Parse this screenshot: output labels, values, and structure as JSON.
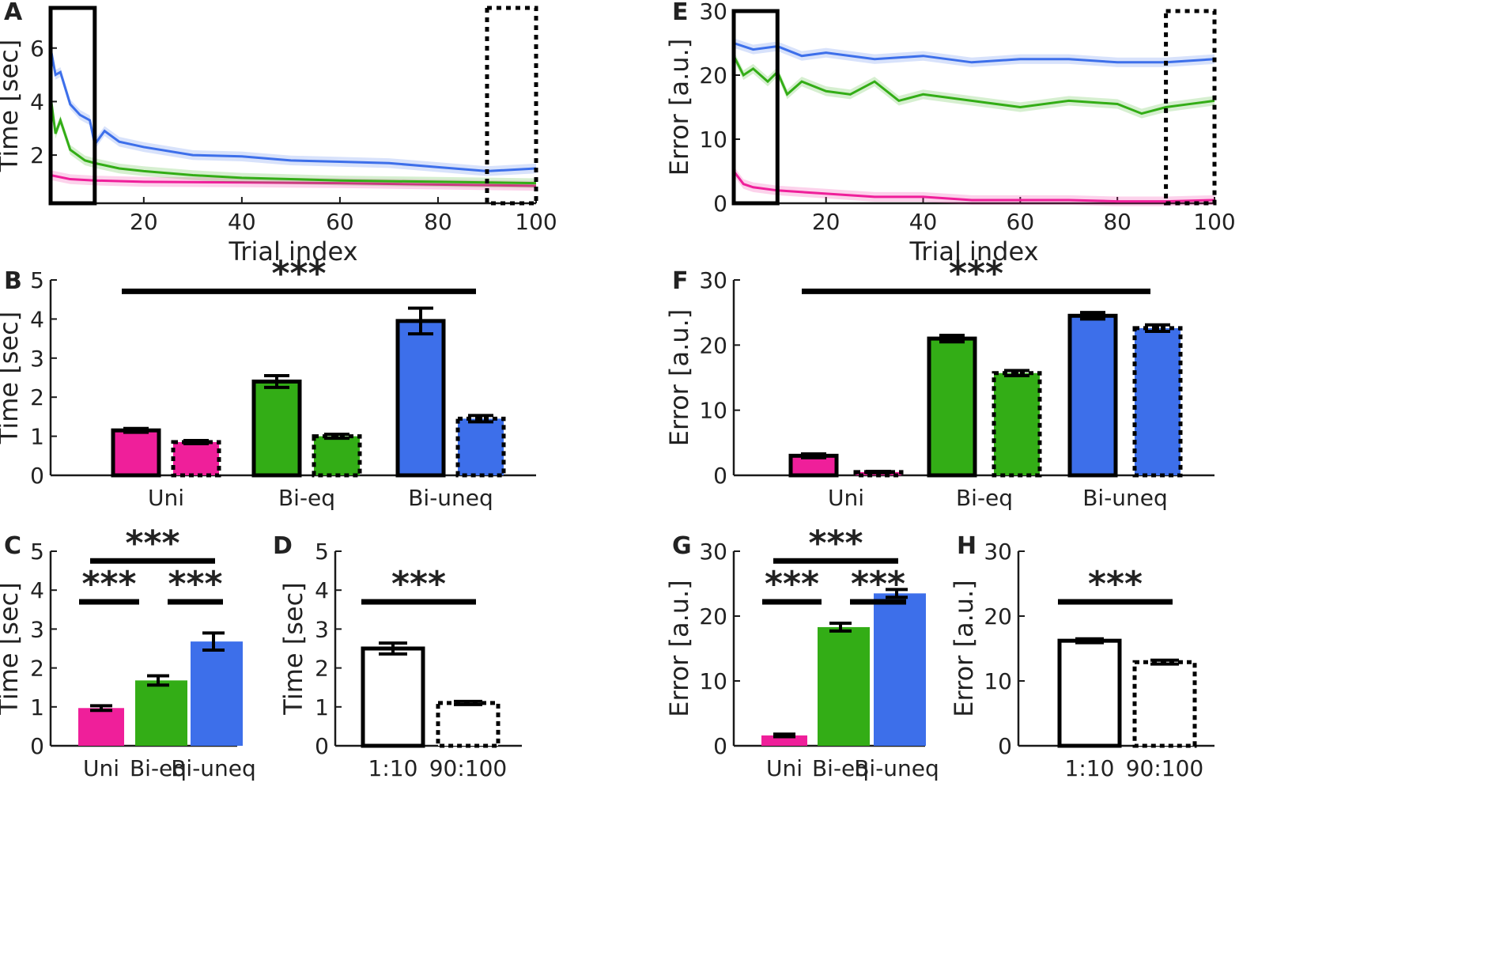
{
  "colors": {
    "uni": "#ef1f9a",
    "bieq": "#33ad16",
    "biuneq": "#3d6fea",
    "axis": "#1a1a1a",
    "bar_outline": "#000000"
  },
  "chart_data": [
    {
      "panel": "A",
      "type": "line",
      "xlabel": "Trial index",
      "ylabel": "Time [sec]",
      "xlim": [
        1,
        100
      ],
      "ylim": [
        0.2,
        7.5
      ],
      "xticks": [
        "20",
        "40",
        "60",
        "80",
        "100"
      ],
      "yticks": [
        "2",
        "4",
        "6"
      ],
      "boxes": [
        {
          "range": "1:10",
          "style": "solid"
        },
        {
          "range": "90:100",
          "style": "dotted"
        }
      ],
      "series": [
        {
          "name": "Uni",
          "color_key": "uni",
          "points": [
            [
              1,
              1.25
            ],
            [
              5,
              1.1
            ],
            [
              10,
              1.05
            ],
            [
              20,
              1.0
            ],
            [
              40,
              0.98
            ],
            [
              60,
              0.95
            ],
            [
              80,
              0.9
            ],
            [
              100,
              0.85
            ]
          ]
        },
        {
          "name": "Bi-eq",
          "color_key": "bieq",
          "points": [
            [
              1,
              4.2
            ],
            [
              2,
              2.8
            ],
            [
              3,
              3.3
            ],
            [
              5,
              2.2
            ],
            [
              8,
              1.8
            ],
            [
              10,
              1.7
            ],
            [
              15,
              1.5
            ],
            [
              20,
              1.4
            ],
            [
              30,
              1.25
            ],
            [
              40,
              1.15
            ],
            [
              60,
              1.05
            ],
            [
              80,
              1.0
            ],
            [
              100,
              0.95
            ]
          ]
        },
        {
          "name": "Bi-uneq",
          "color_key": "biuneq",
          "points": [
            [
              1,
              6.0
            ],
            [
              2,
              5.0
            ],
            [
              3,
              5.1
            ],
            [
              5,
              3.9
            ],
            [
              7,
              3.5
            ],
            [
              9,
              3.3
            ],
            [
              10,
              2.4
            ],
            [
              12,
              2.9
            ],
            [
              15,
              2.5
            ],
            [
              20,
              2.3
            ],
            [
              30,
              2.0
            ],
            [
              40,
              1.95
            ],
            [
              50,
              1.8
            ],
            [
              60,
              1.75
            ],
            [
              70,
              1.7
            ],
            [
              80,
              1.55
            ],
            [
              90,
              1.4
            ],
            [
              100,
              1.5
            ]
          ]
        }
      ]
    },
    {
      "panel": "B",
      "type": "bar",
      "ylabel": "Time [sec]",
      "ylim": [
        0,
        5
      ],
      "yticks": [
        "0",
        "1",
        "2",
        "3",
        "4",
        "5"
      ],
      "categories": [
        "Uni",
        "Bi-eq",
        "Bi-uneq"
      ],
      "series": [
        {
          "name": "1:10",
          "style": "solid",
          "values": [
            1.15,
            2.4,
            3.95
          ],
          "errors": [
            0.05,
            0.15,
            0.33
          ]
        },
        {
          "name": "90:100",
          "style": "dotted",
          "values": [
            0.85,
            1.0,
            1.45
          ],
          "errors": [
            0.04,
            0.05,
            0.08
          ]
        }
      ],
      "significance": [
        "***"
      ]
    },
    {
      "panel": "C",
      "type": "bar",
      "ylabel": "Time [sec]",
      "ylim": [
        0,
        5
      ],
      "yticks": [
        "0",
        "1",
        "2",
        "3",
        "4",
        "5"
      ],
      "categories": [
        "Uni",
        "Bi-eq",
        "Bi-uneq"
      ],
      "values": [
        0.97,
        1.68,
        2.68
      ],
      "errors": [
        0.06,
        0.12,
        0.22
      ],
      "significance": [
        "***",
        "***",
        "***"
      ]
    },
    {
      "panel": "D",
      "type": "bar",
      "ylabel": "Time [sec]",
      "ylim": [
        0,
        5
      ],
      "yticks": [
        "0",
        "1",
        "2",
        "3",
        "4",
        "5"
      ],
      "categories": [
        "1:10",
        "90:100"
      ],
      "values": [
        2.5,
        1.1
      ],
      "errors": [
        0.14,
        0.04
      ],
      "significance": [
        "***"
      ]
    },
    {
      "panel": "E",
      "type": "line",
      "xlabel": "Trial index",
      "ylabel": "Error [a.u.]",
      "xlim": [
        1,
        100
      ],
      "ylim": [
        0,
        30
      ],
      "xticks": [
        "20",
        "40",
        "60",
        "80",
        "100"
      ],
      "yticks": [
        "0",
        "10",
        "20",
        "30"
      ],
      "boxes": [
        {
          "range": "1:10",
          "style": "solid"
        },
        {
          "range": "90:100",
          "style": "dotted"
        }
      ],
      "series": [
        {
          "name": "Uni",
          "color_key": "uni",
          "points": [
            [
              1,
              5.0
            ],
            [
              3,
              3.0
            ],
            [
              5,
              2.5
            ],
            [
              10,
              2.0
            ],
            [
              20,
              1.5
            ],
            [
              30,
              1.0
            ],
            [
              40,
              1.0
            ],
            [
              50,
              0.5
            ],
            [
              60,
              0.5
            ],
            [
              70,
              0.5
            ],
            [
              80,
              0.3
            ],
            [
              90,
              0.3
            ],
            [
              100,
              0.5
            ]
          ]
        },
        {
          "name": "Bi-eq",
          "color_key": "bieq",
          "points": [
            [
              1,
              23
            ],
            [
              3,
              20
            ],
            [
              5,
              21
            ],
            [
              8,
              19
            ],
            [
              10,
              20.5
            ],
            [
              12,
              17
            ],
            [
              15,
              19
            ],
            [
              20,
              17.5
            ],
            [
              25,
              17
            ],
            [
              30,
              19
            ],
            [
              35,
              16
            ],
            [
              40,
              17
            ],
            [
              50,
              16
            ],
            [
              60,
              15
            ],
            [
              70,
              16
            ],
            [
              80,
              15.5
            ],
            [
              85,
              14
            ],
            [
              90,
              15
            ],
            [
              95,
              15.5
            ],
            [
              100,
              16
            ]
          ]
        },
        {
          "name": "Bi-uneq",
          "color_key": "biuneq",
          "points": [
            [
              1,
              25
            ],
            [
              3,
              24.5
            ],
            [
              5,
              24
            ],
            [
              10,
              24.5
            ],
            [
              15,
              23
            ],
            [
              20,
              23.5
            ],
            [
              30,
              22.5
            ],
            [
              40,
              23
            ],
            [
              50,
              22
            ],
            [
              60,
              22.5
            ],
            [
              70,
              22.5
            ],
            [
              80,
              22
            ],
            [
              90,
              22
            ],
            [
              100,
              22.5
            ]
          ]
        }
      ]
    },
    {
      "panel": "F",
      "type": "bar",
      "ylabel": "Error [a.u.]",
      "ylim": [
        0,
        30
      ],
      "yticks": [
        "0",
        "10",
        "20",
        "30"
      ],
      "categories": [
        "Uni",
        "Bi-eq",
        "Bi-uneq"
      ],
      "series": [
        {
          "name": "1:10",
          "style": "solid",
          "values": [
            3.0,
            21.0,
            24.5
          ],
          "errors": [
            0.3,
            0.5,
            0.5
          ]
        },
        {
          "name": "90:100",
          "style": "dotted",
          "values": [
            0.5,
            15.7,
            22.6
          ],
          "errors": [
            0.1,
            0.4,
            0.5
          ]
        }
      ],
      "significance": [
        "***"
      ]
    },
    {
      "panel": "G",
      "type": "bar",
      "ylabel": "Error [a.u.]",
      "ylim": [
        0,
        30
      ],
      "yticks": [
        "0",
        "10",
        "20",
        "30"
      ],
      "categories": [
        "Uni",
        "Bi-eq",
        "Bi-uneq"
      ],
      "values": [
        1.6,
        18.3,
        23.5
      ],
      "errors": [
        0.2,
        0.6,
        0.6
      ],
      "significance": [
        "***",
        "***",
        "***"
      ]
    },
    {
      "panel": "H",
      "type": "bar",
      "ylabel": "Error [a.u.]",
      "ylim": [
        0,
        30
      ],
      "yticks": [
        "0",
        "10",
        "20",
        "30"
      ],
      "categories": [
        "1:10",
        "90:100"
      ],
      "values": [
        16.2,
        12.9
      ],
      "errors": [
        0.3,
        0.3
      ],
      "significance": [
        "***"
      ]
    }
  ]
}
